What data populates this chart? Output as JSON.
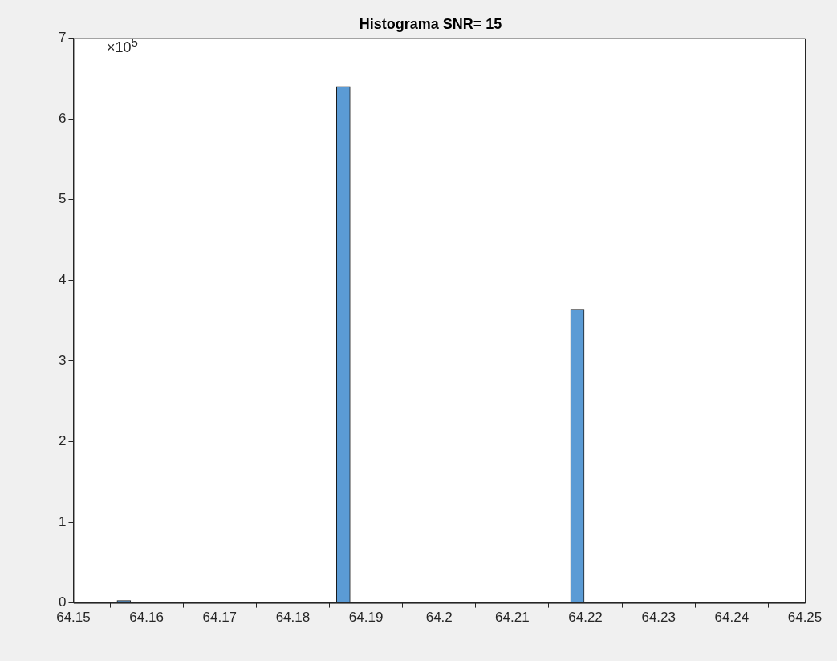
{
  "chart_data": {
    "type": "bar",
    "title": "Histograma SNR= 15",
    "x": [
      64.1569,
      64.1869,
      64.2189
    ],
    "values": [
      0.03,
      6.4,
      3.64
    ],
    "color": "#5b9bd5",
    "xlim": [
      64.15,
      64.25
    ],
    "xticks": [
      64.15,
      64.16,
      64.17,
      64.18,
      64.19,
      64.2,
      64.21,
      64.22,
      64.23,
      64.24,
      64.25
    ],
    "ylim": [
      0,
      7
    ],
    "yticks": [
      0,
      1,
      2,
      3,
      4,
      5,
      6,
      7
    ],
    "annotations": [
      "×10$^{5}$"
    ],
    "grid": false,
    "legend": false
  }
}
